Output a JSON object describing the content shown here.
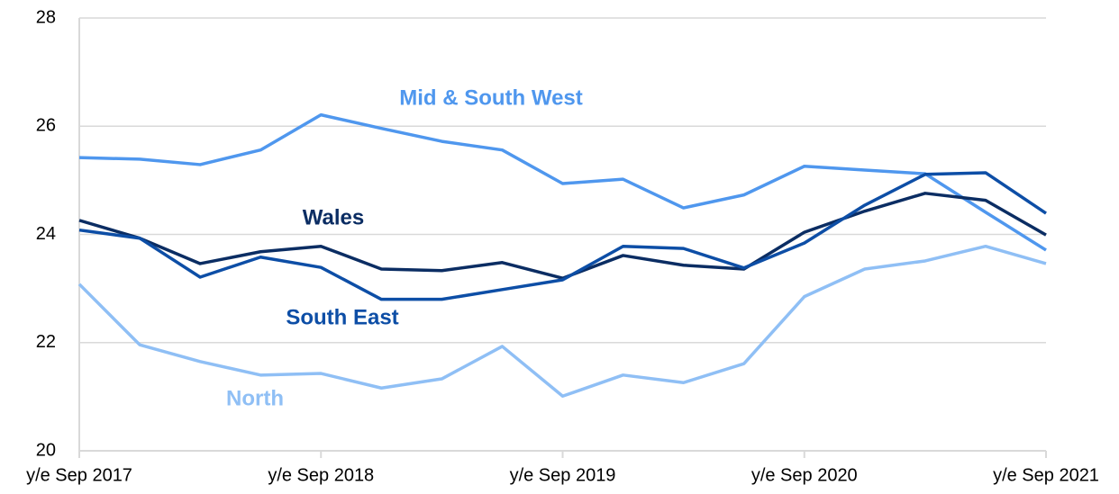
{
  "chart_data": {
    "type": "line",
    "categories": [
      "y/e Sep 2017",
      null,
      null,
      null,
      "y/e Sep 2018",
      null,
      null,
      null,
      "y/e Sep 2019",
      null,
      null,
      null,
      "y/e Sep 2020",
      null,
      null,
      null,
      "y/e Sep 2021"
    ],
    "series": [
      {
        "name": "Mid & South West",
        "color": "#4f97ee",
        "values": [
          25.42,
          25.39,
          25.29,
          25.56,
          26.21,
          25.96,
          25.72,
          25.56,
          24.94,
          25.02,
          24.49,
          24.73,
          25.26,
          25.19,
          25.12,
          24.41,
          23.71
        ]
      },
      {
        "name": "Wales",
        "color": "#0b2d63",
        "values": [
          24.26,
          23.93,
          23.46,
          23.68,
          23.78,
          23.36,
          23.33,
          23.48,
          23.19,
          23.61,
          23.43,
          23.36,
          24.04,
          24.43,
          24.76,
          24.63,
          23.99
        ]
      },
      {
        "name": "South East",
        "color": "#0d4ea6",
        "values": [
          24.08,
          23.93,
          23.21,
          23.58,
          23.39,
          22.8,
          22.8,
          22.98,
          23.16,
          23.78,
          23.74,
          23.38,
          23.84,
          24.54,
          25.11,
          25.14,
          24.39
        ]
      },
      {
        "name": "North",
        "color": "#8fbff5",
        "values": [
          23.08,
          21.96,
          21.65,
          21.4,
          21.43,
          21.16,
          21.33,
          21.93,
          21.01,
          21.4,
          21.26,
          21.61,
          22.85,
          23.36,
          23.51,
          23.78,
          23.46
        ]
      }
    ],
    "ylim": [
      20,
      28
    ],
    "yticks": [
      20,
      22,
      24,
      26,
      28
    ],
    "grid": true
  }
}
